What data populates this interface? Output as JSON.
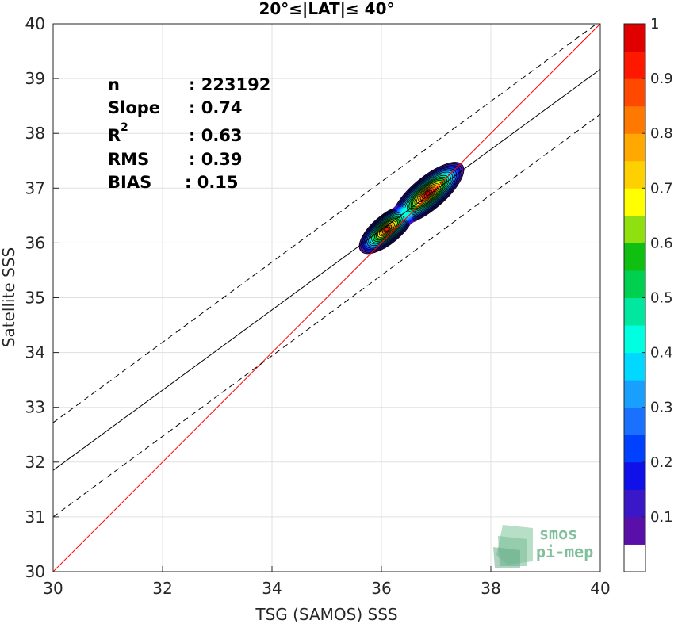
{
  "chart_data": {
    "type": "heatmap",
    "title": "20°≤|LAT|≤ 40°",
    "xlabel": "TSG (SAMOS) SSS",
    "ylabel": "Satellite SSS",
    "xlim": [
      30,
      40
    ],
    "ylim": [
      30,
      40
    ],
    "xticks": [
      30,
      32,
      34,
      36,
      38,
      40
    ],
    "yticks": [
      30,
      31,
      32,
      33,
      34,
      35,
      36,
      37,
      38,
      39,
      40
    ],
    "grid": true,
    "stats": [
      {
        "label": "n",
        "value": ": 223192"
      },
      {
        "label": "Slope",
        "value": ": 0.74"
      },
      {
        "label": "R",
        "sup": "2",
        "value": ": 0.63"
      },
      {
        "label": "RMS",
        "value": ": 0.39"
      },
      {
        "label": "BIAS",
        "value": ": 0.15"
      }
    ],
    "lines": [
      {
        "name": "identity",
        "color": "#ff0000",
        "style": "solid",
        "points": [
          [
            30,
            30
          ],
          [
            40,
            40
          ]
        ]
      },
      {
        "name": "regression",
        "color": "#000000",
        "style": "solid",
        "points": [
          [
            30,
            31.85
          ],
          [
            40,
            39.17
          ]
        ]
      },
      {
        "name": "upper",
        "color": "#000000",
        "style": "dashed",
        "points": [
          [
            30,
            32.72
          ],
          [
            40,
            40.05
          ]
        ]
      },
      {
        "name": "lower",
        "color": "#000000",
        "style": "dashed",
        "points": [
          [
            30,
            31.0
          ],
          [
            40,
            38.35
          ]
        ]
      }
    ],
    "density_peaks": [
      {
        "x": 36.1,
        "y": 36.25,
        "level": 0.9
      },
      {
        "x": 36.85,
        "y": 36.9,
        "level": 0.95
      }
    ],
    "colorbar": {
      "levels": [
        0,
        0.05,
        0.1,
        0.15,
        0.2,
        0.25,
        0.3,
        0.35,
        0.4,
        0.45,
        0.5,
        0.55,
        0.6,
        0.65,
        0.7,
        0.75,
        0.8,
        0.85,
        0.9,
        0.95,
        1.0
      ],
      "ticks": [
        0.1,
        0.2,
        0.3,
        0.4,
        0.5,
        0.6,
        0.7,
        0.8,
        0.9,
        1
      ],
      "tick_labels": [
        "0.1",
        "0.2",
        "0.3",
        "0.4",
        "0.5",
        "0.6",
        "0.7",
        "0.8",
        "0.9",
        "1"
      ],
      "colors": [
        "#ffffff",
        "#5a0fa8",
        "#3a18c8",
        "#1010e8",
        "#0040ff",
        "#1a70ff",
        "#19a0ff",
        "#00d8ff",
        "#00ffe0",
        "#00e8a0",
        "#00d050",
        "#10c010",
        "#90e010",
        "#ffff00",
        "#ffd000",
        "#ffa800",
        "#ff7800",
        "#ff4800",
        "#ff1800",
        "#e00000",
        "#900000"
      ]
    },
    "logo": [
      "smos",
      "pi-mep"
    ]
  }
}
